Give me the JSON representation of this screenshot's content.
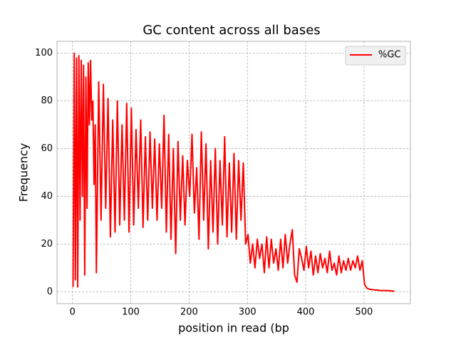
{
  "chart_data": {
    "type": "line",
    "title": "GC content across all bases",
    "x_label": "position in read (bp",
    "y_label": "Frequency",
    "xlim": [
      -26.55,
      579.55
    ],
    "ylim": [
      -5,
      105
    ],
    "xticks": [
      0,
      100,
      200,
      300,
      400,
      500
    ],
    "yticks": [
      0,
      20,
      40,
      60,
      80,
      100
    ],
    "grid": true,
    "legend": "upper right",
    "x": [
      1,
      3,
      5,
      7,
      9,
      11,
      13,
      15,
      17,
      19,
      21,
      23,
      25,
      27,
      29,
      31,
      33,
      35,
      37,
      39,
      41,
      45,
      49,
      53,
      57,
      61,
      65,
      69,
      73,
      77,
      81,
      85,
      89,
      93,
      97,
      101,
      105,
      109,
      113,
      117,
      121,
      125,
      129,
      133,
      137,
      141,
      145,
      149,
      153,
      157,
      161,
      165,
      169,
      173,
      177,
      181,
      185,
      189,
      193,
      197,
      201,
      205,
      209,
      213,
      217,
      221,
      225,
      229,
      233,
      237,
      241,
      245,
      249,
      253,
      257,
      261,
      265,
      269,
      273,
      277,
      281,
      285,
      289,
      293,
      297,
      301,
      305,
      309,
      313,
      317,
      321,
      325,
      329,
      333,
      337,
      341,
      345,
      349,
      353,
      357,
      361,
      365,
      369,
      373,
      377,
      381,
      385,
      389,
      393,
      397,
      401,
      405,
      409,
      413,
      417,
      421,
      425,
      429,
      433,
      437,
      441,
      445,
      449,
      453,
      457,
      461,
      465,
      469,
      473,
      477,
      481,
      485,
      489,
      493,
      497,
      501,
      505,
      510,
      520,
      530,
      540,
      550,
      552
    ],
    "series": [
      {
        "name": "%GC",
        "color": "#ff0000",
        "values": [
          2,
          100,
          5,
          98,
          2,
          99,
          30,
          97,
          40,
          95,
          7,
          90,
          35,
          96,
          70,
          97,
          72,
          80,
          45,
          70,
          8,
          88,
          30,
          87,
          35,
          81,
          23,
          72,
          25,
          80,
          28,
          70,
          30,
          79,
          25,
          77,
          28,
          68,
          35,
          72,
          27,
          65,
          30,
          67,
          35,
          64,
          30,
          62,
          35,
          74,
          25,
          66,
          22,
          60,
          16,
          63,
          30,
          57,
          28,
          55,
          40,
          66,
          33,
          52,
          22,
          67,
          30,
          62,
          18,
          55,
          25,
          60,
          20,
          55,
          28,
          65,
          23,
          54,
          25,
          58,
          22,
          55,
          30,
          54,
          20,
          24,
          12,
          20,
          10,
          22,
          14,
          20,
          8,
          23,
          10,
          22,
          12,
          18,
          9,
          22,
          10,
          24,
          12,
          20,
          26,
          7,
          4,
          18,
          14,
          9,
          19,
          10,
          17,
          7,
          15,
          8,
          16,
          10,
          14,
          8,
          17,
          9,
          12,
          7,
          15,
          8,
          13,
          9,
          14,
          9,
          13,
          10,
          15,
          9,
          13,
          3,
          1.5,
          1,
          0.7,
          0.5,
          0.5,
          0.3,
          0.1
        ]
      }
    ]
  }
}
